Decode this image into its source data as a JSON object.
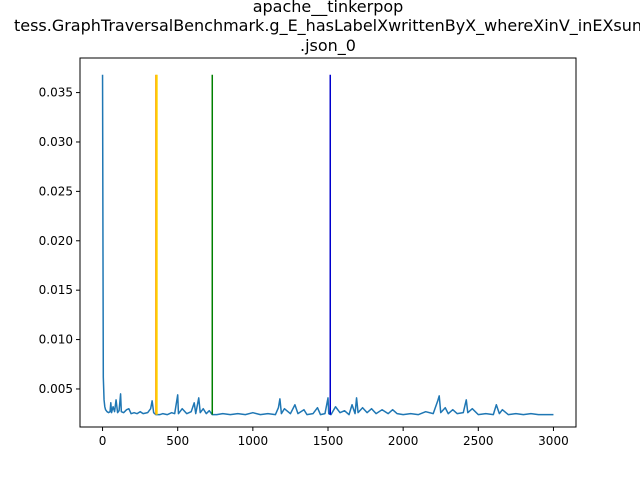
{
  "chart_data": {
    "type": "line",
    "title_lines": [
      "apache__tinkerpop",
      "tess.GraphTraversalBenchmark.g_E_hasLabelXwrittenByX_whereXinV_inEXsun",
      ".json_0"
    ],
    "xlabel": "",
    "ylabel": "",
    "xlim": [
      -150,
      3150
    ],
    "ylim": [
      0.00115,
      0.0385
    ],
    "xticks": [
      0,
      500,
      1000,
      1500,
      2000,
      2500,
      3000
    ],
    "xtick_labels": [
      "0",
      "500",
      "1000",
      "1500",
      "2000",
      "2500",
      "3000"
    ],
    "yticks": [
      0.005,
      0.01,
      0.015,
      0.02,
      0.025,
      0.03,
      0.035
    ],
    "ytick_labels": [
      "0.005",
      "0.010",
      "0.015",
      "0.020",
      "0.025",
      "0.030",
      "0.035"
    ],
    "grid": false,
    "series": [
      {
        "color": "#1f77b4",
        "points": [
          [
            0,
            0.0368
          ],
          [
            5,
            0.0062
          ],
          [
            10,
            0.0039
          ],
          [
            15,
            0.0032
          ],
          [
            20,
            0.0029
          ],
          [
            30,
            0.0027
          ],
          [
            40,
            0.0026
          ],
          [
            50,
            0.0027
          ],
          [
            55,
            0.0036
          ],
          [
            60,
            0.0026
          ],
          [
            70,
            0.0032
          ],
          [
            80,
            0.0027
          ],
          [
            90,
            0.0039
          ],
          [
            100,
            0.0026
          ],
          [
            110,
            0.0028
          ],
          [
            120,
            0.0045
          ],
          [
            125,
            0.0027
          ],
          [
            140,
            0.0026
          ],
          [
            160,
            0.0029
          ],
          [
            175,
            0.003
          ],
          [
            190,
            0.0025
          ],
          [
            210,
            0.0026
          ],
          [
            230,
            0.0025
          ],
          [
            250,
            0.0027
          ],
          [
            270,
            0.0025
          ],
          [
            300,
            0.0026
          ],
          [
            320,
            0.003
          ],
          [
            330,
            0.0038
          ],
          [
            340,
            0.0026
          ],
          [
            355,
            0.0024
          ],
          [
            380,
            0.0024
          ],
          [
            400,
            0.0025
          ],
          [
            430,
            0.0024
          ],
          [
            460,
            0.0026
          ],
          [
            480,
            0.0025
          ],
          [
            500,
            0.0044
          ],
          [
            505,
            0.0025
          ],
          [
            530,
            0.003
          ],
          [
            560,
            0.0025
          ],
          [
            590,
            0.0027
          ],
          [
            610,
            0.0036
          ],
          [
            620,
            0.0025
          ],
          [
            640,
            0.0041
          ],
          [
            650,
            0.0026
          ],
          [
            670,
            0.003
          ],
          [
            690,
            0.0025
          ],
          [
            710,
            0.0028
          ],
          [
            730,
            0.0024
          ],
          [
            760,
            0.0024
          ],
          [
            800,
            0.0025
          ],
          [
            850,
            0.0024
          ],
          [
            900,
            0.0025
          ],
          [
            950,
            0.0024
          ],
          [
            1000,
            0.0026
          ],
          [
            1050,
            0.0024
          ],
          [
            1100,
            0.0025
          ],
          [
            1150,
            0.0024
          ],
          [
            1170,
            0.0031
          ],
          [
            1180,
            0.004
          ],
          [
            1190,
            0.0025
          ],
          [
            1210,
            0.003
          ],
          [
            1250,
            0.0025
          ],
          [
            1280,
            0.0034
          ],
          [
            1300,
            0.0025
          ],
          [
            1340,
            0.0029
          ],
          [
            1360,
            0.0024
          ],
          [
            1400,
            0.0025
          ],
          [
            1430,
            0.0031
          ],
          [
            1450,
            0.0024
          ],
          [
            1480,
            0.0025
          ],
          [
            1500,
            0.0041
          ],
          [
            1505,
            0.0025
          ],
          [
            1520,
            0.0024
          ],
          [
            1550,
            0.0032
          ],
          [
            1580,
            0.0026
          ],
          [
            1610,
            0.0028
          ],
          [
            1640,
            0.0024
          ],
          [
            1660,
            0.0034
          ],
          [
            1680,
            0.0025
          ],
          [
            1690,
            0.0041
          ],
          [
            1700,
            0.0026
          ],
          [
            1730,
            0.0031
          ],
          [
            1760,
            0.0026
          ],
          [
            1790,
            0.003
          ],
          [
            1820,
            0.0025
          ],
          [
            1860,
            0.0029
          ],
          [
            1900,
            0.0025
          ],
          [
            1930,
            0.0029
          ],
          [
            1960,
            0.0025
          ],
          [
            2000,
            0.0024
          ],
          [
            2050,
            0.0025
          ],
          [
            2100,
            0.0024
          ],
          [
            2150,
            0.0027
          ],
          [
            2200,
            0.0025
          ],
          [
            2230,
            0.0038
          ],
          [
            2240,
            0.0043
          ],
          [
            2250,
            0.0026
          ],
          [
            2280,
            0.0031
          ],
          [
            2300,
            0.0025
          ],
          [
            2330,
            0.0029
          ],
          [
            2360,
            0.0025
          ],
          [
            2400,
            0.0026
          ],
          [
            2420,
            0.0039
          ],
          [
            2430,
            0.0026
          ],
          [
            2460,
            0.003
          ],
          [
            2500,
            0.0024
          ],
          [
            2550,
            0.0025
          ],
          [
            2600,
            0.0024
          ],
          [
            2620,
            0.0034
          ],
          [
            2640,
            0.0025
          ],
          [
            2660,
            0.0029
          ],
          [
            2700,
            0.0024
          ],
          [
            2750,
            0.0025
          ],
          [
            2800,
            0.0024
          ],
          [
            2850,
            0.0025
          ],
          [
            2900,
            0.0024
          ],
          [
            2950,
            0.0024
          ],
          [
            3000,
            0.0024
          ]
        ]
      }
    ],
    "vlines": [
      {
        "x": 355,
        "color": "#ffa500",
        "ymin": 0.0024,
        "ymax": 0.0368
      },
      {
        "x": 362,
        "color": "#ffd700",
        "ymin": 0.0024,
        "ymax": 0.0368
      },
      {
        "x": 730,
        "color": "#008000",
        "ymin": 0.0024,
        "ymax": 0.0368
      },
      {
        "x": 1515,
        "color": "#0000cd",
        "ymin": 0.0024,
        "ymax": 0.0368
      }
    ]
  }
}
